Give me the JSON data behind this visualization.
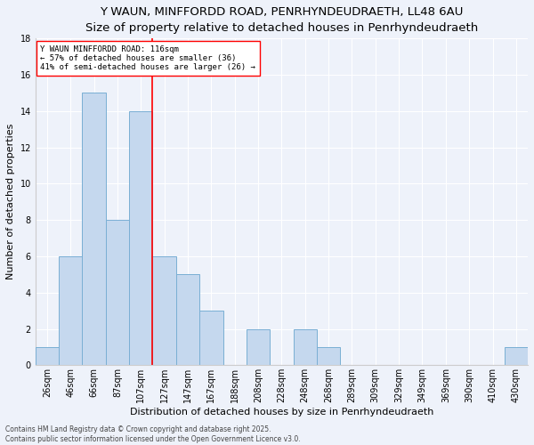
{
  "title": "Y WAUN, MINFFORDD ROAD, PENRHYNDEUDRAETH, LL48 6AU",
  "subtitle": "Size of property relative to detached houses in Penrhyndeudraeth",
  "xlabel": "Distribution of detached houses by size in Penrhyndeudraeth",
  "ylabel": "Number of detached properties",
  "categories": [
    "26sqm",
    "46sqm",
    "66sqm",
    "87sqm",
    "107sqm",
    "127sqm",
    "147sqm",
    "167sqm",
    "188sqm",
    "208sqm",
    "228sqm",
    "248sqm",
    "268sqm",
    "289sqm",
    "309sqm",
    "329sqm",
    "349sqm",
    "369sqm",
    "390sqm",
    "410sqm",
    "430sqm"
  ],
  "values": [
    1,
    6,
    15,
    8,
    14,
    6,
    5,
    3,
    0,
    2,
    0,
    2,
    1,
    0,
    0,
    0,
    0,
    0,
    0,
    0,
    1
  ],
  "bar_color": "#c5d8ee",
  "bar_edge_color": "#7aafd4",
  "vline_x": 4.5,
  "vline_color": "red",
  "annotation_text": "Y WAUN MINFFORDD ROAD: 116sqm\n← 57% of detached houses are smaller (36)\n41% of semi-detached houses are larger (26) →",
  "annotation_box_color": "white",
  "annotation_box_edge": "red",
  "ylim": [
    0,
    18
  ],
  "yticks": [
    0,
    2,
    4,
    6,
    8,
    10,
    12,
    14,
    16,
    18
  ],
  "footnote": "Contains HM Land Registry data © Crown copyright and database right 2025.\nContains public sector information licensed under the Open Government Licence v3.0.",
  "title_fontsize": 9.5,
  "subtitle_fontsize": 8.5,
  "ylabel_fontsize": 8,
  "xlabel_fontsize": 8,
  "tick_fontsize": 7,
  "annotation_fontsize": 6.5,
  "footnote_fontsize": 5.5,
  "bg_color": "#eef2fa",
  "plot_bg_color": "#eef2fa",
  "grid_color": "#ffffff"
}
